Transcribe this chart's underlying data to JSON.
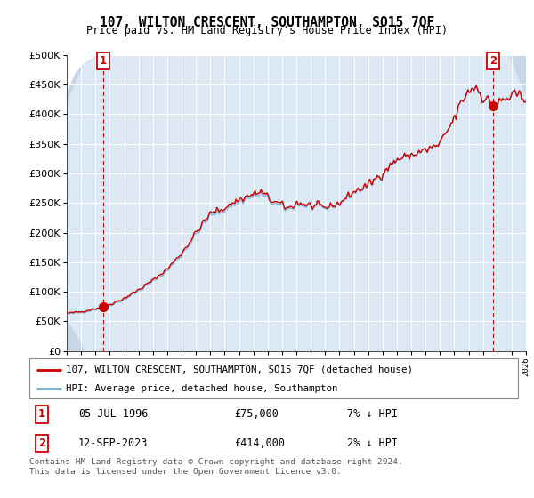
{
  "title": "107, WILTON CRESCENT, SOUTHAMPTON, SO15 7QF",
  "subtitle": "Price paid vs. HM Land Registry's House Price Index (HPI)",
  "legend_entry1": "107, WILTON CRESCENT, SOUTHAMPTON, SO15 7QF (detached house)",
  "legend_entry2": "HPI: Average price, detached house, Southampton",
  "transaction1_date": "05-JUL-1996",
  "transaction1_price": "£75,000",
  "transaction1_hpi": "7% ↓ HPI",
  "transaction2_date": "12-SEP-2023",
  "transaction2_price": "£414,000",
  "transaction2_hpi": "2% ↓ HPI",
  "footnote": "Contains HM Land Registry data © Crown copyright and database right 2024.\nThis data is licensed under the Open Government Licence v3.0.",
  "price_color": "#cc0000",
  "hpi_color": "#7ab0d4",
  "plot_bg_color": "#dce9f5",
  "grid_color": "#ffffff",
  "t1_year": 1996.54,
  "t1_price": 75000,
  "t2_year": 2023.71,
  "t2_price": 414000,
  "ylim_max": 500000,
  "ylim_min": 0,
  "xmin": 1994.0,
  "xmax": 2026.0
}
